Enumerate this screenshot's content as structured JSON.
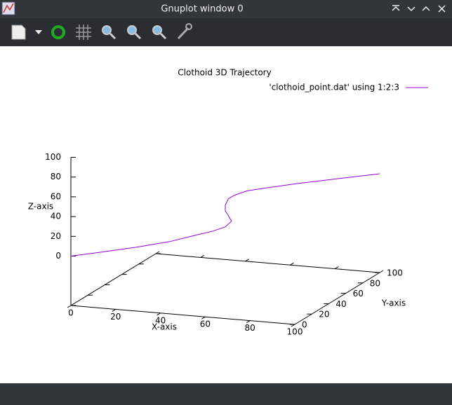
{
  "window": {
    "title": "Gnuplot window 0"
  },
  "chart_data": {
    "type": "line3d",
    "title": "Clothoid 3D Trajectory",
    "xlabel": "X-axis",
    "ylabel": "Y-axis",
    "zlabel": "Z-axis",
    "series": [
      {
        "name": "'clothoid_point.dat' using 1:2:3",
        "color": "#9400d3",
        "x": [
          0,
          10,
          22,
          32,
          41,
          46,
          50,
          52,
          51,
          50,
          50,
          51,
          53,
          57,
          64,
          73,
          86,
          100
        ],
        "y": [
          0,
          10,
          22,
          32,
          41,
          46,
          50,
          52,
          51,
          50,
          50,
          51,
          53,
          57,
          64,
          73,
          86,
          100
        ],
        "z": [
          0,
          0.7,
          2,
          4,
          8,
          10,
          13,
          18,
          24,
          29,
          35,
          41,
          44,
          47,
          48,
          49,
          49.5,
          50
        ]
      }
    ],
    "xlim": [
      0,
      100
    ],
    "ylim": [
      0,
      100
    ],
    "zlim": [
      0,
      100
    ],
    "xticks": [
      0,
      20,
      40,
      60,
      80,
      100
    ],
    "yticks": [
      0,
      20,
      40,
      60,
      80,
      100
    ],
    "zticks": [
      0,
      20,
      40,
      60,
      80,
      100
    ]
  }
}
